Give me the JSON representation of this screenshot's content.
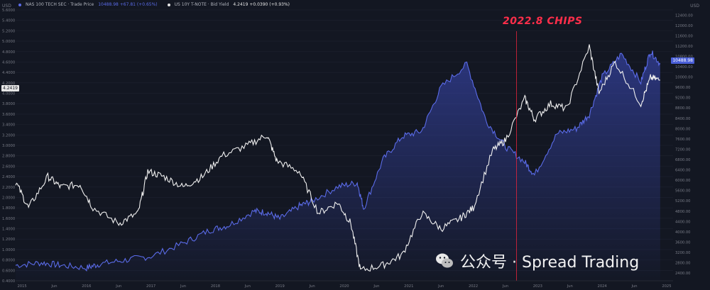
{
  "legend": {
    "series1_label": "NAS 100 TECH SEC · Trade Price",
    "series1_value": "10488.98 +67.81 (+0.65%)",
    "series2_label": "US 10Y T-NOTE · Bid Yield",
    "series2_value": "4.2419 +0.0390 (+0.93%)"
  },
  "axis_unit_left": "USD",
  "axis_unit_right": "USD",
  "price_tag_left": "4.2419",
  "price_tag_right": "10488.98",
  "annotation": "2022.8  CHIPS",
  "watermark_text": "公众号 · Spread Trading",
  "colors": {
    "series1": "#5a6be8",
    "series2": "#f0f0f0",
    "marker": "#e8243c",
    "background": "#131722"
  },
  "chart_data": {
    "type": "line",
    "x_ticks": [
      "2015",
      "Jun",
      "2016",
      "Jun",
      "2017",
      "Jun",
      "2018",
      "Jun",
      "2019",
      "Jun",
      "2020",
      "Jun",
      "2021",
      "Jun",
      "2022",
      "Jun",
      "2023",
      "Jun",
      "2024",
      "Jun",
      "2025"
    ],
    "left_axis": {
      "ticks": [
        "0.4000",
        "0.6000",
        "0.8000",
        "1.0000",
        "1.2000",
        "1.4000",
        "1.6000",
        "1.8000",
        "2.0000",
        "2.2000",
        "2.4000",
        "2.6000",
        "2.8000",
        "3.0000",
        "3.2000",
        "3.4000",
        "3.6000",
        "3.8000",
        "4.0000",
        "4.2000",
        "4.4000",
        "4.6000",
        "4.8000",
        "5.0000",
        "5.2000",
        "5.4000",
        "5.6000"
      ],
      "range": [
        0.4,
        5.6
      ]
    },
    "right_axis": {
      "ticks": [
        "2400.00",
        "2800.00",
        "3200.00",
        "3600.00",
        "4000.00",
        "4400.00",
        "4800.00",
        "5200.00",
        "5600.00",
        "6000.00",
        "6400.00",
        "6800.00",
        "7200.00",
        "7600.00",
        "8000.00",
        "8400.00",
        "8800.00",
        "9200.00",
        "9600.00",
        "10000.00",
        "10400.00",
        "10800.00",
        "11200.00",
        "11600.00",
        "12000.00",
        "12400.00"
      ],
      "range": [
        2100,
        12600
      ]
    },
    "series": [
      {
        "name": "NAS 100 TECH SEC",
        "axis": "right",
        "x": [
          2014.9,
          2015.3,
          2015.6,
          2016.0,
          2016.2,
          2016.6,
          2017.0,
          2017.5,
          2017.9,
          2018.2,
          2018.6,
          2018.8,
          2019.0,
          2019.3,
          2019.5,
          2019.9,
          2020.2,
          2020.3,
          2020.6,
          2020.9,
          2021.2,
          2021.5,
          2021.9,
          2022.2,
          2022.5,
          2022.8,
          2022.95,
          2023.3,
          2023.6,
          2023.8,
          2024.0,
          2024.3,
          2024.6,
          2024.75,
          2024.9
        ],
        "values": [
          2700,
          2800,
          2700,
          2600,
          2750,
          2900,
          3050,
          3550,
          4050,
          4250,
          4800,
          4750,
          4500,
          5000,
          5200,
          5750,
          5900,
          4900,
          6800,
          7700,
          7900,
          9600,
          10500,
          8300,
          7300,
          6700,
          6200,
          7800,
          8000,
          8550,
          10000,
          10900,
          9800,
          11000,
          10500
        ]
      },
      {
        "name": "US 10Y T-NOTE",
        "axis": "left",
        "x": [
          2014.9,
          2015.1,
          2015.4,
          2015.6,
          2015.9,
          2016.1,
          2016.5,
          2016.8,
          2016.95,
          2017.2,
          2017.5,
          2017.8,
          2018.1,
          2018.5,
          2018.8,
          2018.95,
          2019.3,
          2019.6,
          2019.9,
          2020.1,
          2020.25,
          2020.6,
          2020.9,
          2021.2,
          2021.5,
          2021.8,
          2022.0,
          2022.3,
          2022.5,
          2022.8,
          2022.95,
          2023.2,
          2023.45,
          2023.8,
          2023.95,
          2024.2,
          2024.6,
          2024.75,
          2024.9
        ],
        "values": [
          2.3,
          1.8,
          2.4,
          2.2,
          2.25,
          1.8,
          1.5,
          1.7,
          2.5,
          2.4,
          2.2,
          2.4,
          2.8,
          3.0,
          3.2,
          2.7,
          2.5,
          1.7,
          1.9,
          1.5,
          0.6,
          0.7,
          0.9,
          1.7,
          1.4,
          1.6,
          1.8,
          2.9,
          3.1,
          3.9,
          3.5,
          3.8,
          3.7,
          4.9,
          4.0,
          4.6,
          3.8,
          4.3,
          4.25
        ]
      }
    ],
    "vertical_marker": {
      "x": 2022.67,
      "label": "2022.8  CHIPS"
    }
  }
}
